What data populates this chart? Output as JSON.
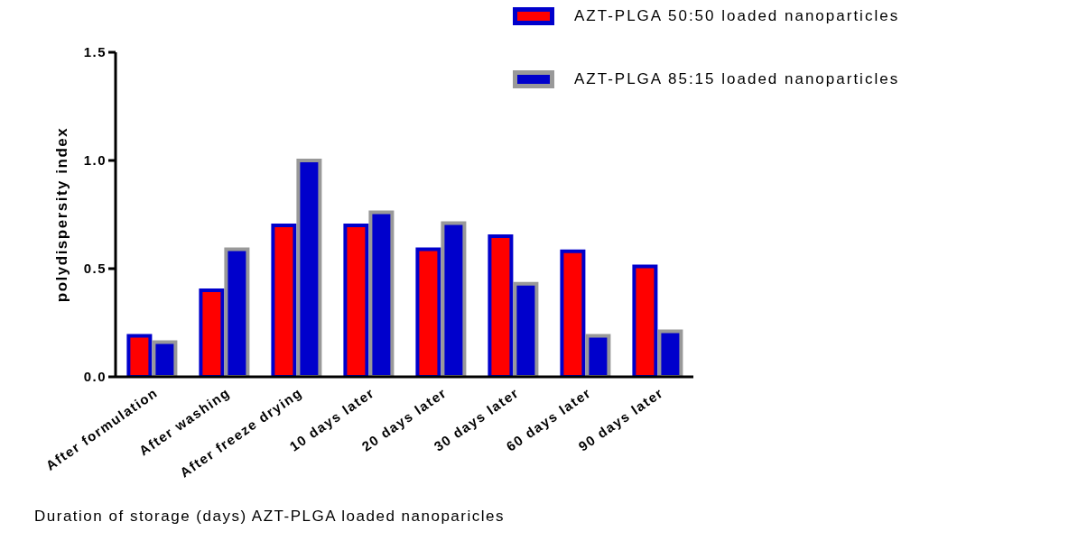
{
  "chart_data": {
    "type": "bar",
    "xlabel": "Duration of storage (days) AZT-PLGA  loaded nanoparicles",
    "ylabel": "polydispersity index",
    "categories": [
      "After formulation",
      "After washing",
      "After freeze drying",
      "10 days later",
      "20 days later",
      "30 days later",
      "60 days later",
      "90 days later"
    ],
    "series": [
      {
        "name": "AZT-PLGA 50:50 loaded nanoparticles",
        "color": "#ff0000",
        "values": [
          0.19,
          0.4,
          0.7,
          0.7,
          0.59,
          0.65,
          0.58,
          0.51
        ]
      },
      {
        "name": "AZT-PLGA 85:15 loaded nanoparticles",
        "color": "#0000cc",
        "values": [
          0.16,
          0.59,
          1.0,
          0.76,
          0.71,
          0.43,
          0.19,
          0.21
        ]
      }
    ],
    "ylim": [
      0,
      1.5
    ],
    "yticks": [
      {
        "value": 0,
        "label": "0.0"
      },
      {
        "value": 0.5,
        "label": "0.5"
      },
      {
        "value": 1,
        "label": "1.0"
      },
      {
        "value": 1.5,
        "label": "1.5"
      }
    ],
    "grid": false,
    "legend": "top right"
  }
}
